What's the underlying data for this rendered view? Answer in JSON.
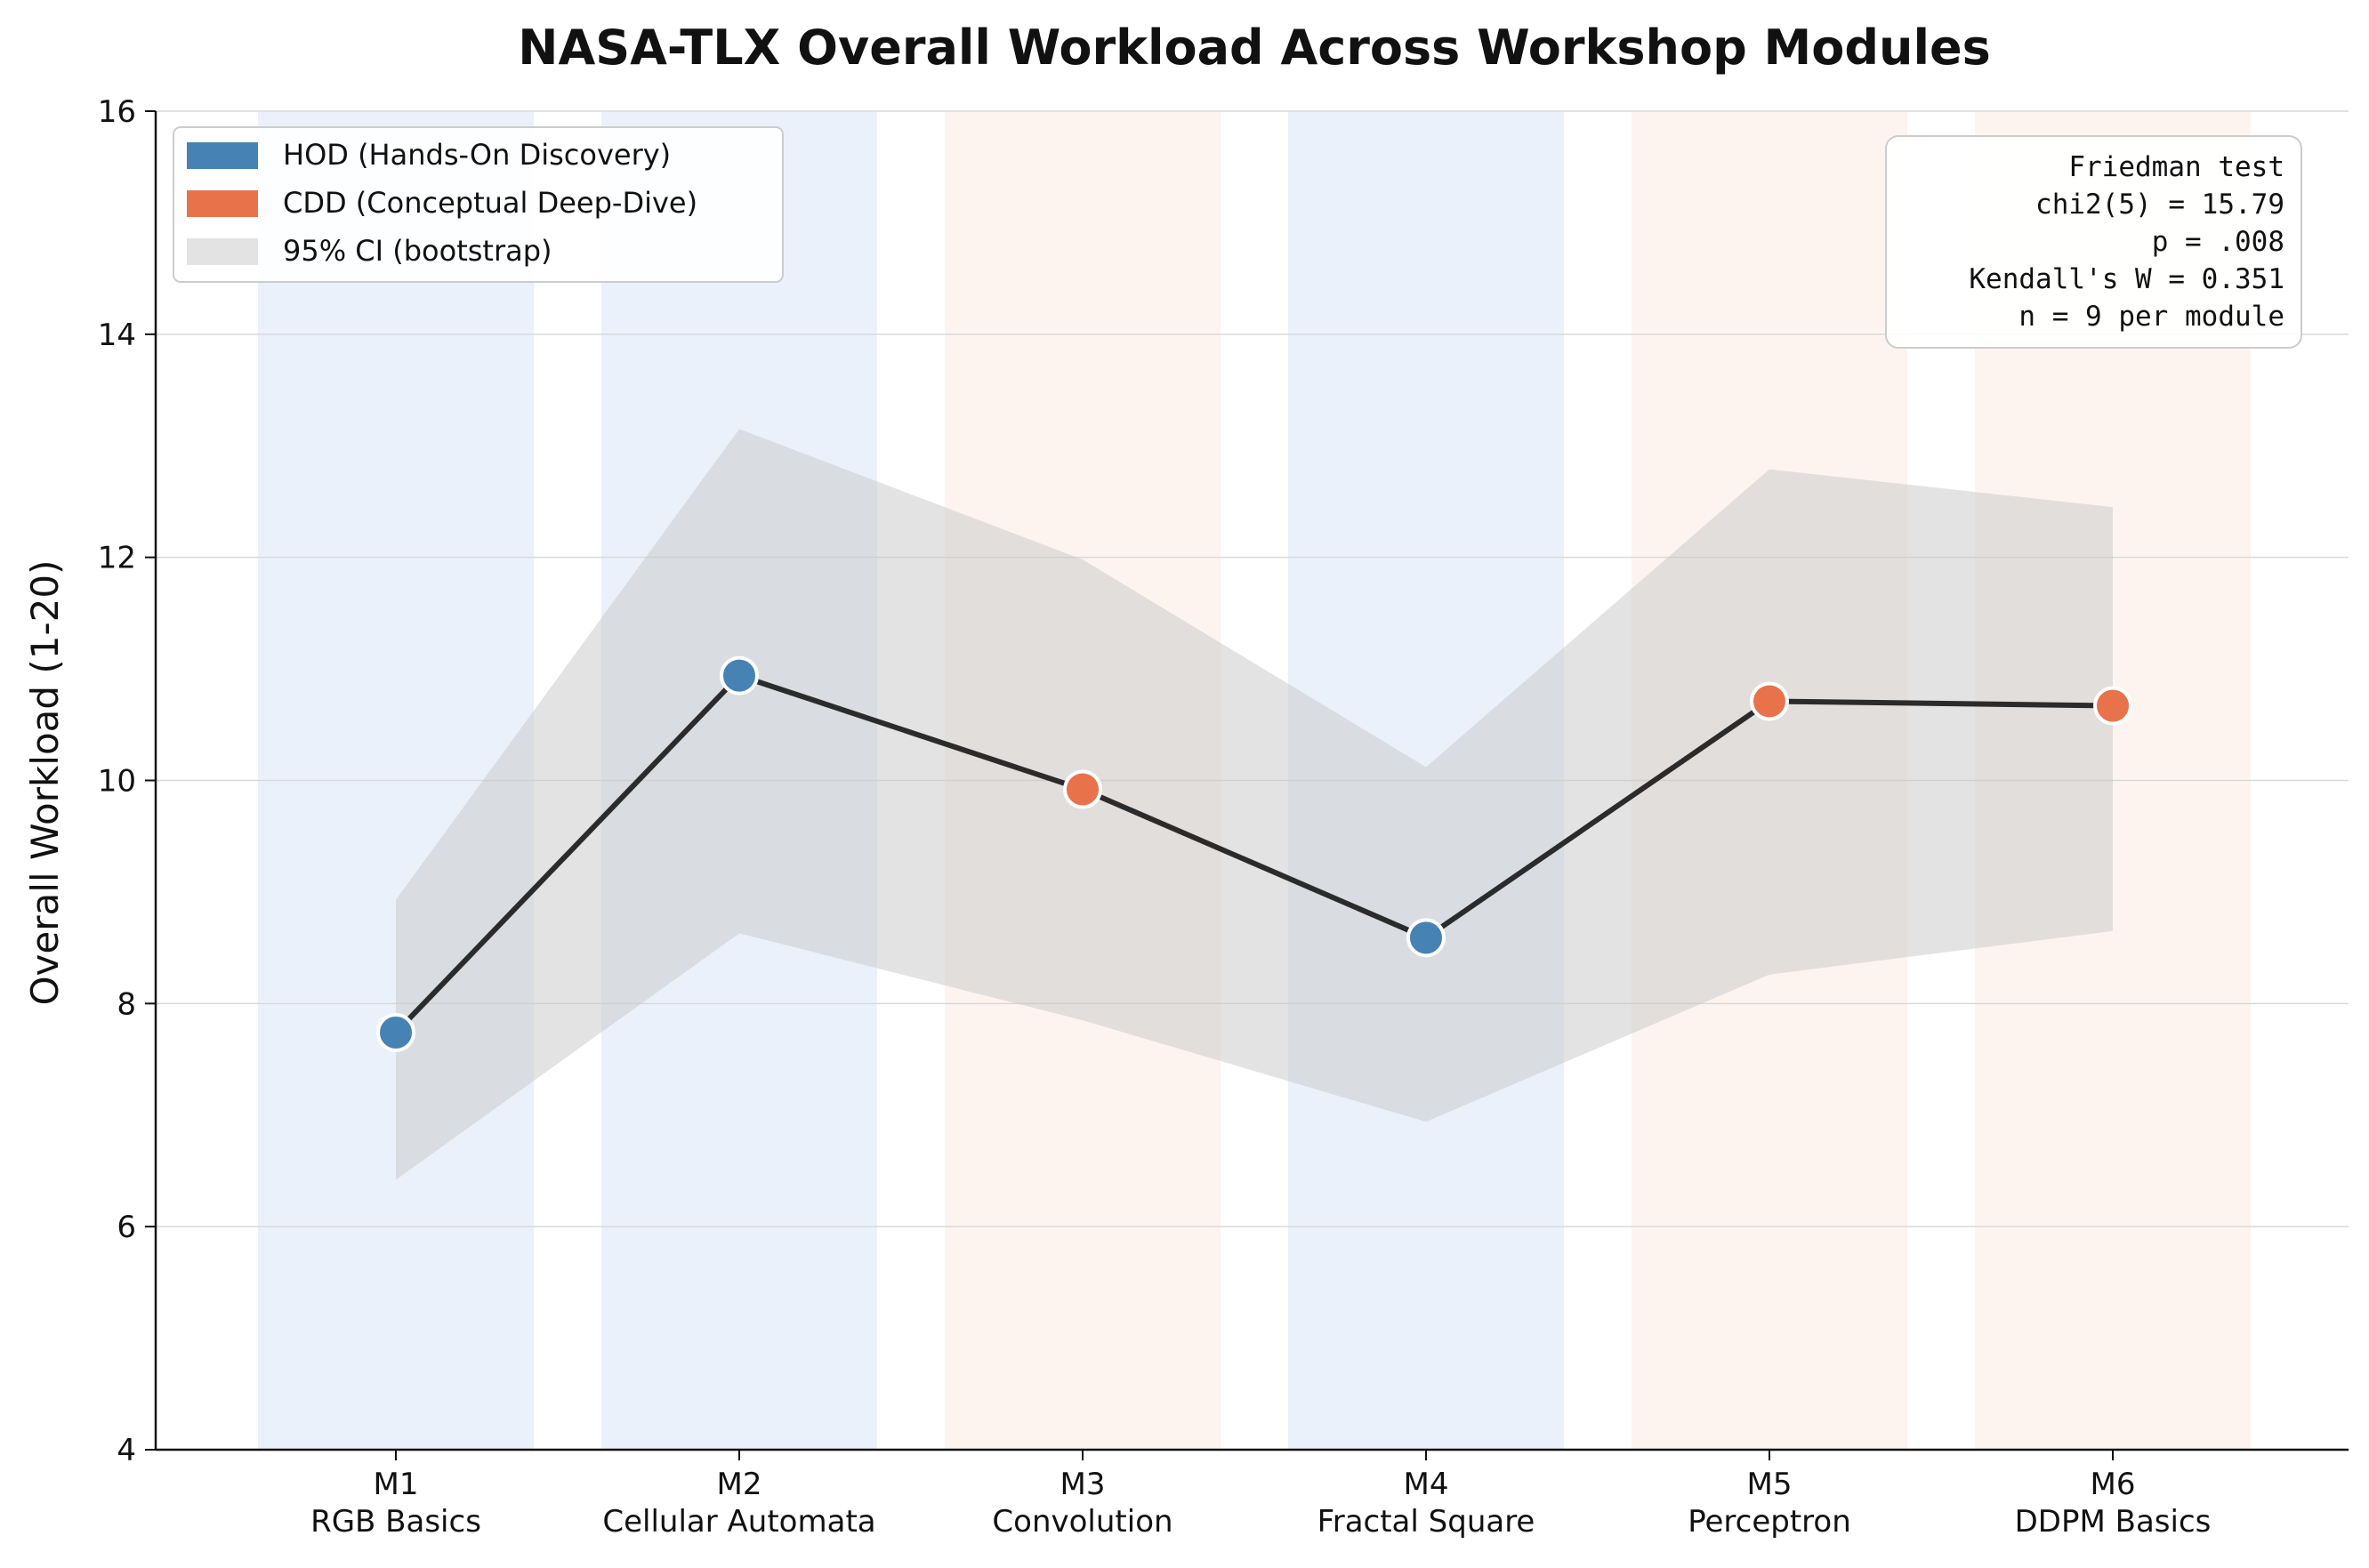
{
  "chart_data": {
    "type": "line",
    "title": "NASA-TLX Overall Workload Across Workshop Modules",
    "xlabel": "",
    "ylabel": "Overall Workload (1-20)",
    "ylim": [
      4,
      16
    ],
    "yticks": [
      "4",
      "6",
      "8",
      "10",
      "12",
      "14",
      "16"
    ],
    "grid": "horizontal",
    "legend_position": "top-left",
    "categories": [
      {
        "code": "M1",
        "name": "RGB Basics",
        "group": "HOD"
      },
      {
        "code": "M2",
        "name": "Cellular Automata",
        "group": "HOD"
      },
      {
        "code": "M3",
        "name": "Convolution",
        "group": "CDD"
      },
      {
        "code": "M4",
        "name": "Fractal Square",
        "group": "HOD"
      },
      {
        "code": "M5",
        "name": "Perceptron",
        "group": "CDD"
      },
      {
        "code": "M6",
        "name": "DDPM Basics",
        "group": "CDD"
      }
    ],
    "series": [
      {
        "values": [
          7.74,
          10.94,
          9.92,
          8.59,
          10.71,
          10.67
        ]
      }
    ],
    "ci_lower": [
      6.42,
      8.63,
      7.85,
      6.94,
      8.26,
      8.65
    ],
    "ci_upper": [
      8.93,
      13.15,
      11.98,
      10.12,
      12.79,
      12.45
    ],
    "legend": [
      {
        "label": "HOD (Hands-On Discovery)",
        "color": "#4682b4",
        "kind": "HOD"
      },
      {
        "label": "CDD (Conceptual Deep-Dive)",
        "color": "#e8734a",
        "kind": "CDD"
      },
      {
        "label": "95% CI (bootstrap)",
        "color": "#c8c8c8",
        "kind": "CI"
      }
    ],
    "stats_box": [
      "Friedman test",
      "chi2(5) = 15.79",
      "p = .008",
      "Kendall's W = 0.351",
      "n = 9 per module"
    ],
    "colors": {
      "HOD": "#4682b4",
      "CDD": "#e8734a",
      "HOD_band": "#dce8f7",
      "CDD_band": "#fbe6dd",
      "line": "#2b2b2b",
      "ci": "#c8c8c8"
    }
  }
}
